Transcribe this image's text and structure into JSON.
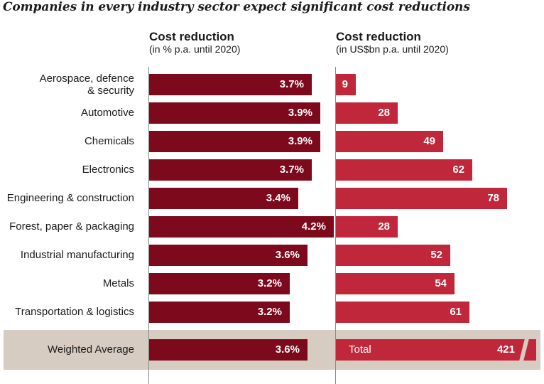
{
  "title": "Companies in every industry sector expect significant cost reductions",
  "columns": {
    "left": {
      "heading": "Cost reduction",
      "subheading": "(in % p.a. until 2020)"
    },
    "right": {
      "heading": "Cost reduction",
      "subheading": "(in US$bn p.a. until 2020)"
    }
  },
  "colors": {
    "left_bar": "#7d0a1c",
    "right_bar": "#c0273a",
    "average_band": "#d6ccc2"
  },
  "chart_data": [
    {
      "type": "bar",
      "orientation": "horizontal",
      "unit": "% p.a.",
      "categories": [
        "Aerospace, defence & security",
        "Automotive",
        "Chemicals",
        "Electronics",
        "Engineering & construction",
        "Forest, paper & packaging",
        "Industrial manufacturing",
        "Metals",
        "Transportation & logistics",
        "Weighted Average"
      ],
      "values": [
        3.7,
        3.9,
        3.9,
        3.7,
        3.4,
        4.2,
        3.6,
        3.2,
        3.2,
        3.6
      ],
      "labels": [
        "3.7%",
        "3.9%",
        "3.9%",
        "3.7%",
        "3.4%",
        "4.2%",
        "3.6%",
        "3.2%",
        "3.2%",
        "3.6%"
      ]
    },
    {
      "type": "bar",
      "orientation": "horizontal",
      "unit": "US$bn p.a.",
      "categories": [
        "Aerospace, defence & security",
        "Automotive",
        "Chemicals",
        "Electronics",
        "Engineering & construction",
        "Forest, paper & packaging",
        "Industrial manufacturing",
        "Metals",
        "Transportation & logistics",
        "Total"
      ],
      "values": [
        9,
        28,
        49,
        62,
        78,
        28,
        52,
        54,
        61,
        421
      ],
      "labels": [
        "9",
        "28",
        "49",
        "62",
        "78",
        "28",
        "52",
        "54",
        "61",
        "421"
      ],
      "total_label": "Total",
      "total_bar_truncated": true
    }
  ]
}
